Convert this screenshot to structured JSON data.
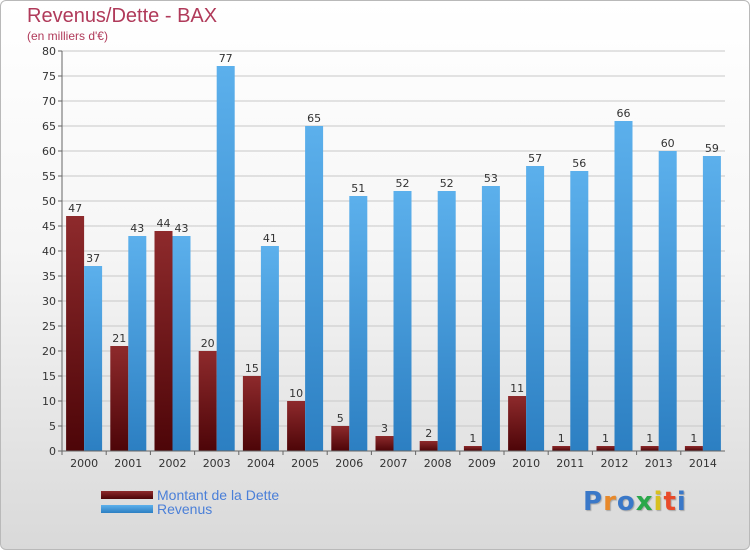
{
  "header": {
    "title": "Revenus/Dette - BAX",
    "subtitle": "(en milliers d'€)"
  },
  "legend": {
    "debt_label": "Montant de la Dette",
    "revenue_label": "Revenus"
  },
  "logo": {
    "text": "Proxiti"
  },
  "colors": {
    "debt": "#7a1a1f",
    "revenue": "#4da6e6",
    "title": "#b03a5a",
    "legend_text": "#4a7fd8"
  },
  "chart_data": {
    "type": "bar",
    "categories": [
      "2000",
      "2001",
      "2002",
      "2003",
      "2004",
      "2005",
      "2006",
      "2007",
      "2008",
      "2009",
      "2010",
      "2011",
      "2012",
      "2013",
      "2014"
    ],
    "series": [
      {
        "name": "Montant de la Dette",
        "values": [
          47,
          21,
          44,
          20,
          15,
          10,
          5,
          3,
          2,
          1,
          11,
          1,
          1,
          1,
          1
        ]
      },
      {
        "name": "Revenus",
        "values": [
          37,
          43,
          43,
          77,
          41,
          65,
          51,
          52,
          52,
          53,
          57,
          56,
          66,
          60,
          59
        ]
      }
    ],
    "ylim": [
      0,
      80
    ],
    "yticks": [
      0,
      5,
      10,
      15,
      20,
      25,
      30,
      35,
      40,
      45,
      50,
      55,
      60,
      65,
      70,
      75,
      80
    ],
    "grid": true,
    "legend_position": "bottom-left"
  }
}
